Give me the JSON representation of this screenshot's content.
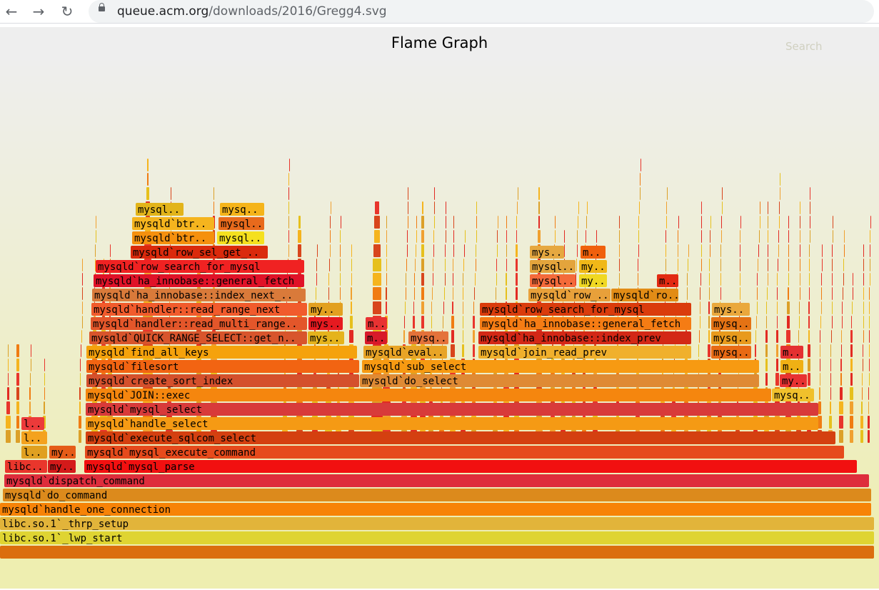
{
  "browser": {
    "back_icon": "arrow-left-icon",
    "forward_icon": "arrow-right-icon",
    "reload_icon": "reload-icon",
    "url_host": "queue.acm.org",
    "url_path": "/downloads/2016/Gregg4.svg"
  },
  "graph": {
    "title": "Flame Graph",
    "search_label": "Search",
    "colors": {
      "bg_top": "#eeeeee",
      "bg_bottom": "#eeeeb0"
    }
  },
  "frames": [
    {
      "label": "libc.so.1`_lwp_start",
      "depth": 0,
      "start": 0,
      "end": 1224,
      "color": "#dfd432"
    },
    {
      "label": "libc.so.1`_thrp_setup",
      "depth": 1,
      "start": 0,
      "end": 1224,
      "color": "#e2b43a"
    },
    {
      "label": "mysqld`handle_one_connection",
      "depth": 2,
      "start": 0,
      "end": 1220,
      "color": "#f78307"
    },
    {
      "label": "mysqld`do_command",
      "depth": 3,
      "start": 4,
      "end": 1220,
      "color": "#dc8a1c"
    },
    {
      "label": "mysqld`dispatch_command",
      "depth": 4,
      "start": 6,
      "end": 1217,
      "color": "#de2d3c"
    },
    {
      "label": "libc..",
      "depth": 5,
      "start": 7,
      "end": 66,
      "color": "#e9362c"
    },
    {
      "label": "my..",
      "depth": 5,
      "start": 67,
      "end": 106,
      "color": "#d41a1a"
    },
    {
      "label": "mysqld`mysql_parse",
      "depth": 5,
      "start": 118,
      "end": 1200,
      "color": "#f21010"
    },
    {
      "label": "l..",
      "depth": 6,
      "start": 30,
      "end": 66,
      "color": "#e0a020"
    },
    {
      "label": "my..",
      "depth": 6,
      "start": 69,
      "end": 106,
      "color": "#e55c18"
    },
    {
      "label": "mysqld`mysql_execute_command",
      "depth": 6,
      "start": 119,
      "end": 1182,
      "color": "#e64a1c"
    },
    {
      "label": "l..",
      "depth": 7,
      "start": 30,
      "end": 66,
      "color": "#f4a21e"
    },
    {
      "label": "mysqld`execute_sqlcom_select",
      "depth": 7,
      "start": 120,
      "end": 1170,
      "color": "#d44010"
    },
    {
      "label": "l..",
      "depth": 8,
      "start": 30,
      "end": 62,
      "color": "#ec3a3a"
    },
    {
      "label": "mysqld`handle_select",
      "depth": 8,
      "start": 120,
      "end": 1146,
      "color": "#f59a14"
    },
    {
      "label": "mysqld`mysql_select",
      "depth": 9,
      "start": 120,
      "end": 1146,
      "color": "#d83a3a"
    },
    {
      "label": "mysqld`JOIN::exec",
      "depth": 10,
      "start": 120,
      "end": 1080,
      "color": "#f5860e"
    },
    {
      "label": "mysq..",
      "depth": 10,
      "start": 1081,
      "end": 1140,
      "color": "#f0c02c"
    },
    {
      "label": "mysqld`create_sort_index",
      "depth": 11,
      "start": 121,
      "end": 503,
      "color": "#d4502c"
    },
    {
      "label": "mysqld`do_select",
      "depth": 11,
      "start": 504,
      "end": 1063,
      "color": "#df8a34"
    },
    {
      "label": "my..",
      "depth": 11,
      "start": 1092,
      "end": 1130,
      "color": "#e83232"
    },
    {
      "label": "mysqld`filesort",
      "depth": 12,
      "start": 121,
      "end": 503,
      "color": "#f26412"
    },
    {
      "label": "mysqld`sub_select",
      "depth": 12,
      "start": 507,
      "end": 1063,
      "color": "#f79a12"
    },
    {
      "label": "m..",
      "depth": 12,
      "start": 1093,
      "end": 1125,
      "color": "#f0b014"
    },
    {
      "label": "mysqld`find_all_keys",
      "depth": 13,
      "start": 121,
      "end": 500,
      "color": "#f5a20c"
    },
    {
      "label": "mysqld`eval..",
      "depth": 13,
      "start": 509,
      "end": 626,
      "color": "#e8a426"
    },
    {
      "label": "mysqld`join_read_prev",
      "depth": 13,
      "start": 670,
      "end": 968,
      "color": "#f0b02c"
    },
    {
      "label": "mysq..",
      "depth": 13,
      "start": 996,
      "end": 1052,
      "color": "#e86a14"
    },
    {
      "label": "m..",
      "depth": 13,
      "start": 1093,
      "end": 1125,
      "color": "#e43030"
    },
    {
      "label": "mysqld`QUICK_RANGE_SELECT::get_n..",
      "depth": 14,
      "start": 125,
      "end": 430,
      "color": "#d8552c"
    },
    {
      "label": "mys..",
      "depth": 14,
      "start": 431,
      "end": 482,
      "color": "#e5b31c"
    },
    {
      "label": "m..",
      "depth": 14,
      "start": 511,
      "end": 542,
      "color": "#d81a2a"
    },
    {
      "label": "mysq..",
      "depth": 14,
      "start": 572,
      "end": 628,
      "color": "#e4723a"
    },
    {
      "label": "mysqld`ha_innobase::index_prev",
      "depth": 14,
      "start": 670,
      "end": 968,
      "color": "#d32816"
    },
    {
      "label": "mysq..",
      "depth": 14,
      "start": 996,
      "end": 1052,
      "color": "#e89a1c"
    },
    {
      "label": "mysqld`handler::read_multi_range..",
      "depth": 15,
      "start": 127,
      "end": 430,
      "color": "#e3562a"
    },
    {
      "label": "mys..",
      "depth": 15,
      "start": 432,
      "end": 480,
      "color": "#e61a20"
    },
    {
      "label": "m..",
      "depth": 15,
      "start": 512,
      "end": 542,
      "color": "#e83232"
    },
    {
      "label": "mysqld`ha_innobase::general_fetch",
      "depth": 15,
      "start": 672,
      "end": 968,
      "color": "#f57c14"
    },
    {
      "label": "mysq..",
      "depth": 15,
      "start": 996,
      "end": 1052,
      "color": "#e47214"
    },
    {
      "label": "mysqld`handler::read_range_next",
      "depth": 16,
      "start": 128,
      "end": 430,
      "color": "#f15b2c"
    },
    {
      "label": "my..",
      "depth": 16,
      "start": 432,
      "end": 480,
      "color": "#e2a020"
    },
    {
      "label": "mysqld`row_search_for_mysql",
      "depth": 16,
      "start": 672,
      "end": 968,
      "color": "#da3c0c"
    },
    {
      "label": "mys..",
      "depth": 16,
      "start": 997,
      "end": 1050,
      "color": "#eaa83c"
    },
    {
      "label": "mysqld`ha_innobase::index_next_..",
      "depth": 17,
      "start": 129,
      "end": 428,
      "color": "#d97a3a"
    },
    {
      "label": "mysqld`row_..",
      "depth": 17,
      "start": 740,
      "end": 855,
      "color": "#e8a03a"
    },
    {
      "label": "mysqld`ro..",
      "depth": 17,
      "start": 856,
      "end": 950,
      "color": "#e28c16"
    },
    {
      "label": "mysqld`ha_innobase::general_fetch",
      "depth": 18,
      "start": 131,
      "end": 426,
      "color": "#e01228"
    },
    {
      "label": "mysql..",
      "depth": 18,
      "start": 742,
      "end": 806,
      "color": "#f46a3a"
    },
    {
      "label": "my..",
      "depth": 18,
      "start": 811,
      "end": 850,
      "color": "#f0d822"
    },
    {
      "label": "m..",
      "depth": 18,
      "start": 920,
      "end": 950,
      "color": "#e22a12"
    },
    {
      "label": "mysqld`row_search_for_mysql",
      "depth": 19,
      "start": 134,
      "end": 426,
      "color": "#f02222"
    },
    {
      "label": "mysql..",
      "depth": 19,
      "start": 742,
      "end": 806,
      "color": "#e3a43c"
    },
    {
      "label": "my..",
      "depth": 19,
      "start": 811,
      "end": 850,
      "color": "#f0b818"
    },
    {
      "label": "mysqld`row_sel_get_..",
      "depth": 20,
      "start": 183,
      "end": 375,
      "color": "#da2a0c"
    },
    {
      "label": "mys..",
      "depth": 20,
      "start": 742,
      "end": 790,
      "color": "#e6a840"
    },
    {
      "label": "m..",
      "depth": 20,
      "start": 813,
      "end": 848,
      "color": "#f0600c"
    },
    {
      "label": "mysqld`btr..",
      "depth": 21,
      "start": 185,
      "end": 300,
      "color": "#f5900e"
    },
    {
      "label": "mysql..",
      "depth": 21,
      "start": 304,
      "end": 370,
      "color": "#f5e01e"
    },
    {
      "label": "mysqld`btr..",
      "depth": 22,
      "start": 185,
      "end": 300,
      "color": "#f5b41e"
    },
    {
      "label": "mysql..",
      "depth": 22,
      "start": 306,
      "end": 370,
      "color": "#e86a1c"
    },
    {
      "label": "mysql..",
      "depth": 23,
      "start": 190,
      "end": 257,
      "color": "#e2b41a"
    },
    {
      "label": "mysq..",
      "depth": 23,
      "start": 308,
      "end": 370,
      "color": "#f5b41a"
    }
  ]
}
